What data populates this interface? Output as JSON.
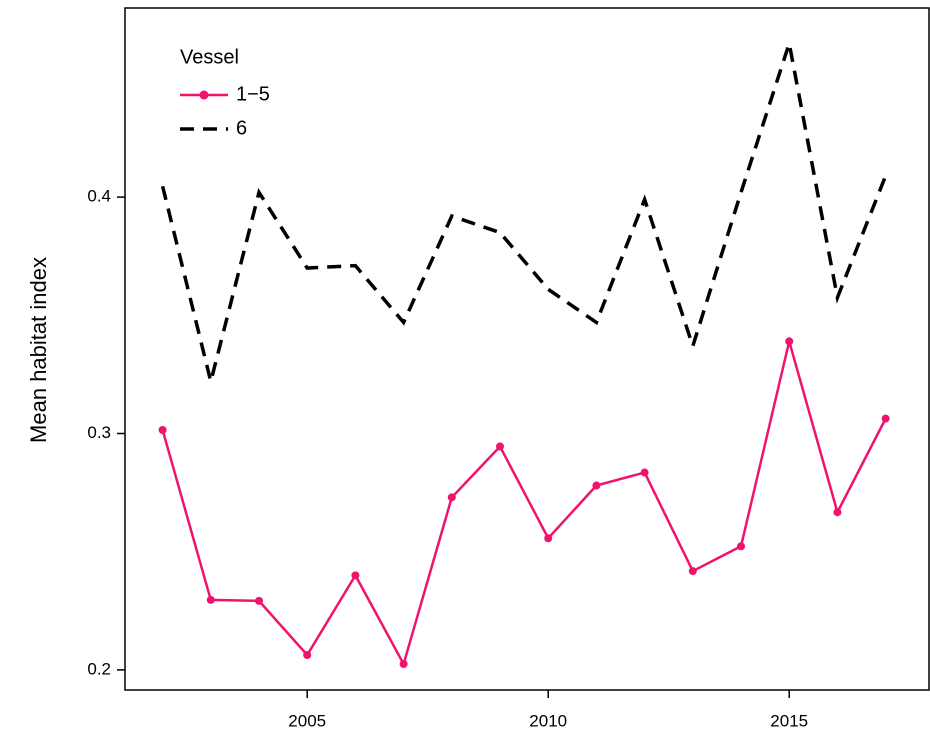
{
  "chart_data": {
    "type": "line",
    "y_label": "Mean habitat index",
    "x": [
      2002,
      2003,
      2004,
      2005,
      2006,
      2007,
      2008,
      2009,
      2010,
      2011,
      2012,
      2013,
      2014,
      2015,
      2016,
      2017
    ],
    "series": [
      {
        "name": "1−5",
        "color": "#f0136d",
        "dashed": false,
        "markers": true,
        "values": [
          0.3015,
          0.2296,
          0.2292,
          0.2063,
          0.24,
          0.2025,
          0.273,
          0.2945,
          0.2557,
          0.278,
          0.2835,
          0.2418,
          0.2523,
          0.339,
          0.2667,
          0.3063
        ]
      },
      {
        "name": "6",
        "color": "#000000",
        "dashed": true,
        "markers": false,
        "values": [
          0.4046,
          0.322,
          0.402,
          0.37,
          0.371,
          0.347,
          0.392,
          0.385,
          0.361,
          0.347,
          0.399,
          0.337,
          0.402,
          0.465,
          0.3575,
          0.409
        ]
      }
    ],
    "legend_title": "Vessel",
    "legend": "top-left",
    "xlim": [
      2001.22,
      2017.9
    ],
    "ylim": [
      0.1915,
      0.48
    ],
    "xticks": [
      2005,
      2010,
      2015
    ],
    "yticks": [
      0.2,
      0.3,
      0.4
    ],
    "grid": false
  }
}
